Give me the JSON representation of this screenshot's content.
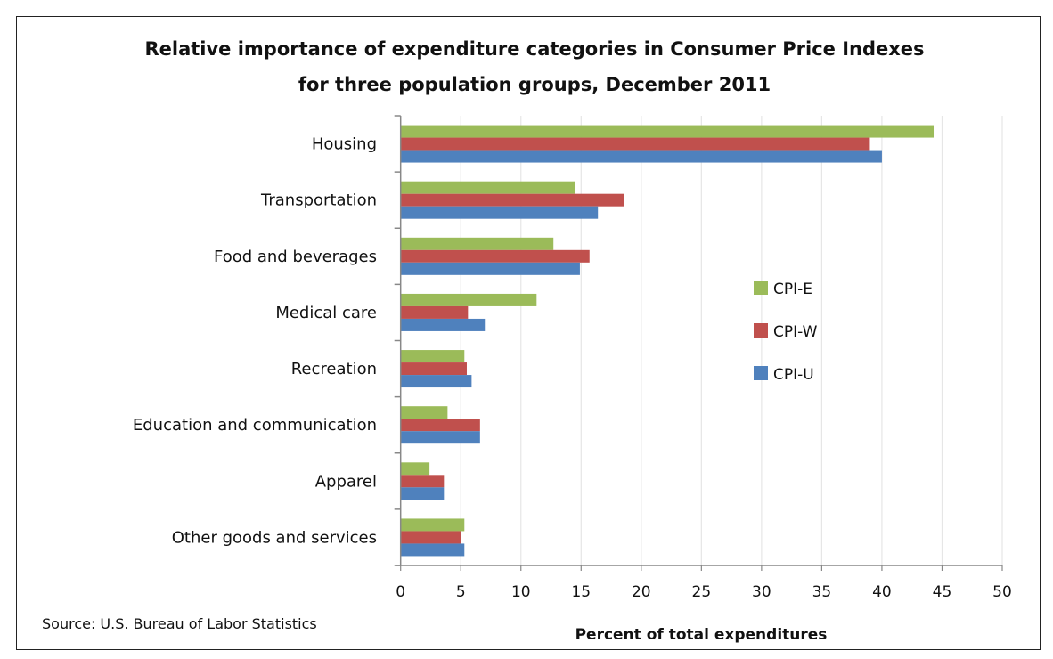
{
  "chart_data": {
    "type": "bar",
    "orientation": "horizontal",
    "title": [
      "Relative importance of expenditure categories in Consumer Price Indexes",
      "for three population groups, December 2011"
    ],
    "xlabel": "Percent of total expenditures",
    "ylabel": "",
    "source": "Source: U.S. Bureau of Labor Statistics",
    "xlim": [
      0,
      50
    ],
    "xticks": [
      0,
      5,
      10,
      15,
      20,
      25,
      30,
      35,
      40,
      45,
      50
    ],
    "grid": true,
    "legend_position": "right-middle",
    "categories": [
      "Housing",
      "Transportation",
      "Food and beverages",
      "Medical care",
      "Recreation",
      "Education and communication",
      "Apparel",
      "Other goods and services"
    ],
    "series": [
      {
        "name": "CPI-E",
        "color": "#9BBB59",
        "values": [
          44.3,
          14.5,
          12.7,
          11.3,
          5.3,
          3.9,
          2.4,
          5.3
        ]
      },
      {
        "name": "CPI-W",
        "color": "#C0504D",
        "values": [
          39.0,
          18.6,
          15.7,
          5.6,
          5.5,
          6.6,
          3.6,
          5.0
        ]
      },
      {
        "name": "CPI-U",
        "color": "#4F81BD",
        "values": [
          40.0,
          16.4,
          14.9,
          7.0,
          5.9,
          6.6,
          3.6,
          5.3
        ]
      }
    ]
  }
}
